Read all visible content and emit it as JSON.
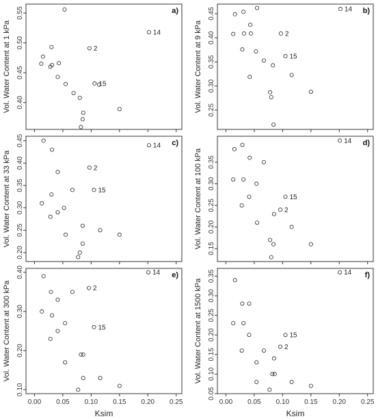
{
  "chart_data": [
    {
      "type": "scatter",
      "panel": "a)",
      "ylabel": "Vol. Water Content at 1 kPa",
      "xlabel": "",
      "xlim": [
        -0.015,
        0.26
      ],
      "ylim": [
        0.355,
        0.565
      ],
      "xticks": [
        "0.00",
        "0.05",
        "0.10",
        "0.15",
        "0.20",
        "0.25"
      ],
      "yticks": [
        0.4,
        0.45,
        0.5,
        0.55
      ],
      "ytick_labels": [
        "0.40",
        "0.45",
        "0.50",
        "0.55"
      ],
      "points": [
        {
          "x": 0.053,
          "y": 0.556
        },
        {
          "x": 0.015,
          "y": 0.477
        },
        {
          "x": 0.012,
          "y": 0.465
        },
        {
          "x": 0.03,
          "y": 0.493
        },
        {
          "x": 0.028,
          "y": 0.46
        },
        {
          "x": 0.031,
          "y": 0.463
        },
        {
          "x": 0.043,
          "y": 0.466
        },
        {
          "x": 0.041,
          "y": 0.443
        },
        {
          "x": 0.055,
          "y": 0.431
        },
        {
          "x": 0.069,
          "y": 0.416
        },
        {
          "x": 0.08,
          "y": 0.408
        },
        {
          "x": 0.114,
          "y": 0.43
        },
        {
          "x": 0.086,
          "y": 0.383
        },
        {
          "x": 0.085,
          "y": 0.372
        },
        {
          "x": 0.082,
          "y": 0.359
        },
        {
          "x": 0.15,
          "y": 0.389
        },
        {
          "x": 0.097,
          "y": 0.491,
          "label": "2"
        },
        {
          "x": 0.202,
          "y": 0.518,
          "label": "14"
        },
        {
          "x": 0.106,
          "y": 0.432,
          "label": "15"
        }
      ]
    },
    {
      "type": "scatter",
      "panel": "b)",
      "ylabel": "Vol. Water Content at 9 kPa",
      "xlabel": "",
      "xlim": [
        -0.015,
        0.26
      ],
      "ylim": [
        0.21,
        0.47
      ],
      "xticks": [
        "0.00",
        "0.05",
        "0.10",
        "0.15",
        "0.20",
        "0.25"
      ],
      "yticks": [
        0.25,
        0.3,
        0.35,
        0.4,
        0.45
      ],
      "ytick_labels": [
        "0.25",
        "0.30",
        "0.35",
        "0.40",
        "0.45"
      ],
      "points": [
        {
          "x": 0.016,
          "y": 0.449
        },
        {
          "x": 0.031,
          "y": 0.454
        },
        {
          "x": 0.055,
          "y": 0.462
        },
        {
          "x": 0.043,
          "y": 0.427
        },
        {
          "x": 0.013,
          "y": 0.408
        },
        {
          "x": 0.032,
          "y": 0.409
        },
        {
          "x": 0.044,
          "y": 0.409
        },
        {
          "x": 0.029,
          "y": 0.376
        },
        {
          "x": 0.053,
          "y": 0.372
        },
        {
          "x": 0.067,
          "y": 0.353
        },
        {
          "x": 0.083,
          "y": 0.343
        },
        {
          "x": 0.042,
          "y": 0.319
        },
        {
          "x": 0.116,
          "y": 0.323
        },
        {
          "x": 0.078,
          "y": 0.287
        },
        {
          "x": 0.08,
          "y": 0.277
        },
        {
          "x": 0.15,
          "y": 0.288
        },
        {
          "x": 0.084,
          "y": 0.22
        },
        {
          "x": 0.097,
          "y": 0.409,
          "label": "2"
        },
        {
          "x": 0.202,
          "y": 0.46,
          "label": "14"
        },
        {
          "x": 0.105,
          "y": 0.362,
          "label": "15"
        }
      ]
    },
    {
      "type": "scatter",
      "panel": "c)",
      "ylabel": "Vol. Water Content at 33 kPa",
      "xlabel": "",
      "xlim": [
        -0.015,
        0.26
      ],
      "ylim": [
        0.18,
        0.46
      ],
      "xticks": [
        "0.00",
        "0.05",
        "0.10",
        "0.15",
        "0.20",
        "0.25"
      ],
      "yticks": [
        0.2,
        0.25,
        0.3,
        0.35,
        0.4,
        0.45
      ],
      "ytick_labels": [
        "0.20",
        "0.25",
        "0.30",
        "0.35",
        "0.40",
        "0.45"
      ],
      "points": [
        {
          "x": 0.016,
          "y": 0.45
        },
        {
          "x": 0.031,
          "y": 0.43
        },
        {
          "x": 0.041,
          "y": 0.38
        },
        {
          "x": 0.03,
          "y": 0.33
        },
        {
          "x": 0.013,
          "y": 0.31
        },
        {
          "x": 0.052,
          "y": 0.3
        },
        {
          "x": 0.041,
          "y": 0.29
        },
        {
          "x": 0.028,
          "y": 0.28
        },
        {
          "x": 0.067,
          "y": 0.34
        },
        {
          "x": 0.085,
          "y": 0.26
        },
        {
          "x": 0.055,
          "y": 0.24
        },
        {
          "x": 0.116,
          "y": 0.25
        },
        {
          "x": 0.15,
          "y": 0.24
        },
        {
          "x": 0.085,
          "y": 0.22
        },
        {
          "x": 0.08,
          "y": 0.2
        },
        {
          "x": 0.077,
          "y": 0.19
        },
        {
          "x": 0.097,
          "y": 0.39,
          "label": "2"
        },
        {
          "x": 0.202,
          "y": 0.44,
          "label": "14"
        },
        {
          "x": 0.105,
          "y": 0.34,
          "label": "15"
        }
      ]
    },
    {
      "type": "scatter",
      "panel": "d)",
      "ylabel": "Vol. Water Content at 100 kPa",
      "xlabel": "",
      "xlim": [
        -0.015,
        0.26
      ],
      "ylim": [
        0.12,
        0.41
      ],
      "xticks": [
        "0.00",
        "0.05",
        "0.10",
        "0.15",
        "0.20",
        "0.25"
      ],
      "yticks": [
        0.15,
        0.2,
        0.25,
        0.3,
        0.35
      ],
      "ytick_labels": [
        "0.15",
        "0.20",
        "0.25",
        "0.30",
        "0.35"
      ],
      "points": [
        {
          "x": 0.015,
          "y": 0.38
        },
        {
          "x": 0.029,
          "y": 0.39
        },
        {
          "x": 0.042,
          "y": 0.36
        },
        {
          "x": 0.067,
          "y": 0.35
        },
        {
          "x": 0.013,
          "y": 0.31
        },
        {
          "x": 0.031,
          "y": 0.31
        },
        {
          "x": 0.054,
          "y": 0.3
        },
        {
          "x": 0.041,
          "y": 0.27
        },
        {
          "x": 0.028,
          "y": 0.25
        },
        {
          "x": 0.085,
          "y": 0.23
        },
        {
          "x": 0.055,
          "y": 0.21
        },
        {
          "x": 0.116,
          "y": 0.2
        },
        {
          "x": 0.078,
          "y": 0.17
        },
        {
          "x": 0.084,
          "y": 0.16
        },
        {
          "x": 0.15,
          "y": 0.16
        },
        {
          "x": 0.08,
          "y": 0.13
        },
        {
          "x": 0.096,
          "y": 0.24,
          "label": "2"
        },
        {
          "x": 0.201,
          "y": 0.4,
          "label": "14"
        },
        {
          "x": 0.105,
          "y": 0.27,
          "label": "15"
        }
      ]
    },
    {
      "type": "scatter",
      "panel": "e)",
      "ylabel": "Vol. Water Content at 300 kPa",
      "xlabel": "Ksim",
      "xlim": [
        -0.015,
        0.26
      ],
      "ylim": [
        0.09,
        0.41
      ],
      "xticks": [
        "0.00",
        "0.05",
        "0.10",
        "0.15",
        "0.20",
        "0.25"
      ],
      "yticks": [
        0.1,
        0.2,
        0.3,
        0.4
      ],
      "ytick_labels": [
        "0.10",
        "0.20",
        "0.30",
        "0.40"
      ],
      "points": [
        {
          "x": 0.016,
          "y": 0.39
        },
        {
          "x": 0.029,
          "y": 0.35
        },
        {
          "x": 0.041,
          "y": 0.33
        },
        {
          "x": 0.067,
          "y": 0.35
        },
        {
          "x": 0.013,
          "y": 0.3
        },
        {
          "x": 0.031,
          "y": 0.29
        },
        {
          "x": 0.054,
          "y": 0.27
        },
        {
          "x": 0.041,
          "y": 0.25
        },
        {
          "x": 0.028,
          "y": 0.23
        },
        {
          "x": 0.082,
          "y": 0.19
        },
        {
          "x": 0.086,
          "y": 0.19
        },
        {
          "x": 0.054,
          "y": 0.17
        },
        {
          "x": 0.086,
          "y": 0.13
        },
        {
          "x": 0.116,
          "y": 0.13
        },
        {
          "x": 0.15,
          "y": 0.11
        },
        {
          "x": 0.077,
          "y": 0.1
        },
        {
          "x": 0.096,
          "y": 0.36,
          "label": "2"
        },
        {
          "x": 0.201,
          "y": 0.4,
          "label": "14"
        },
        {
          "x": 0.105,
          "y": 0.26,
          "label": "15"
        }
      ]
    },
    {
      "type": "scatter",
      "panel": "f)",
      "ylabel": "Vol. Water Content at 1500 kPa",
      "xlabel": "Ksim",
      "xlim": [
        -0.015,
        0.26
      ],
      "ylim": [
        0.05,
        0.37
      ],
      "xticks": [
        "0.00",
        "0.05",
        "0.10",
        "0.15",
        "0.20",
        "0.25"
      ],
      "yticks": [
        0.05,
        0.1,
        0.15,
        0.2,
        0.25,
        0.3,
        0.35
      ],
      "ytick_labels": [
        "0.05",
        "0.10",
        "0.15",
        "0.20",
        "0.25",
        "0.30",
        "0.35"
      ],
      "points": [
        {
          "x": 0.016,
          "y": 0.34
        },
        {
          "x": 0.029,
          "y": 0.28
        },
        {
          "x": 0.041,
          "y": 0.28
        },
        {
          "x": 0.013,
          "y": 0.23
        },
        {
          "x": 0.031,
          "y": 0.23
        },
        {
          "x": 0.041,
          "y": 0.2
        },
        {
          "x": 0.028,
          "y": 0.16
        },
        {
          "x": 0.067,
          "y": 0.16
        },
        {
          "x": 0.085,
          "y": 0.14
        },
        {
          "x": 0.054,
          "y": 0.13
        },
        {
          "x": 0.082,
          "y": 0.1
        },
        {
          "x": 0.086,
          "y": 0.1
        },
        {
          "x": 0.054,
          "y": 0.08
        },
        {
          "x": 0.116,
          "y": 0.08
        },
        {
          "x": 0.15,
          "y": 0.07
        },
        {
          "x": 0.077,
          "y": 0.06
        },
        {
          "x": 0.096,
          "y": 0.17,
          "label": "2"
        },
        {
          "x": 0.201,
          "y": 0.36,
          "label": "14"
        },
        {
          "x": 0.105,
          "y": 0.2,
          "label": "15"
        }
      ]
    }
  ]
}
